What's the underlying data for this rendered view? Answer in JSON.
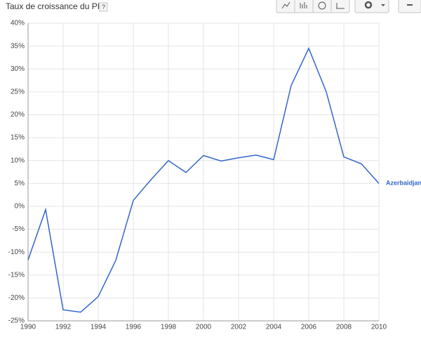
{
  "header": {
    "help": "?"
  },
  "chart_data": {
    "type": "line",
    "title": "Taux de croissance du PIB",
    "x": [
      1990,
      1991,
      1992,
      1993,
      1994,
      1995,
      1996,
      1997,
      1998,
      1999,
      2000,
      2001,
      2002,
      2003,
      2004,
      2005,
      2006,
      2007,
      2008,
      2009,
      2010
    ],
    "series": [
      {
        "name": "Azerbaidjan",
        "color": "#3366cc",
        "values": [
          -11.7,
          -0.7,
          -22.6,
          -23.1,
          -19.7,
          -11.8,
          1.3,
          5.8,
          10.0,
          7.4,
          11.1,
          9.9,
          10.6,
          11.2,
          10.2,
          26.4,
          34.5,
          25.0,
          10.8,
          9.3,
          5.0
        ]
      }
    ],
    "xlim": [
      1990,
      2010
    ],
    "xticks": [
      1990,
      1992,
      1994,
      1996,
      1998,
      2000,
      2002,
      2004,
      2006,
      2008,
      2010
    ],
    "ylim": [
      -25,
      40
    ],
    "yticks": [
      {
        "value": -25,
        "label": "-25%"
      },
      {
        "value": -20,
        "label": "-20%"
      },
      {
        "value": -15,
        "label": "-15%"
      },
      {
        "value": -10,
        "label": "-10%"
      },
      {
        "value": -5,
        "label": "-5%"
      },
      {
        "value": 0,
        "label": "0%"
      },
      {
        "value": 5,
        "label": "5%"
      },
      {
        "value": 10,
        "label": "10%"
      },
      {
        "value": 15,
        "label": "15%"
      },
      {
        "value": 20,
        "label": "20%"
      },
      {
        "value": 25,
        "label": "25%"
      },
      {
        "value": 30,
        "label": "30%"
      },
      {
        "value": 35,
        "label": "35%"
      },
      {
        "value": 40,
        "label": "40%"
      }
    ],
    "grid": true
  }
}
